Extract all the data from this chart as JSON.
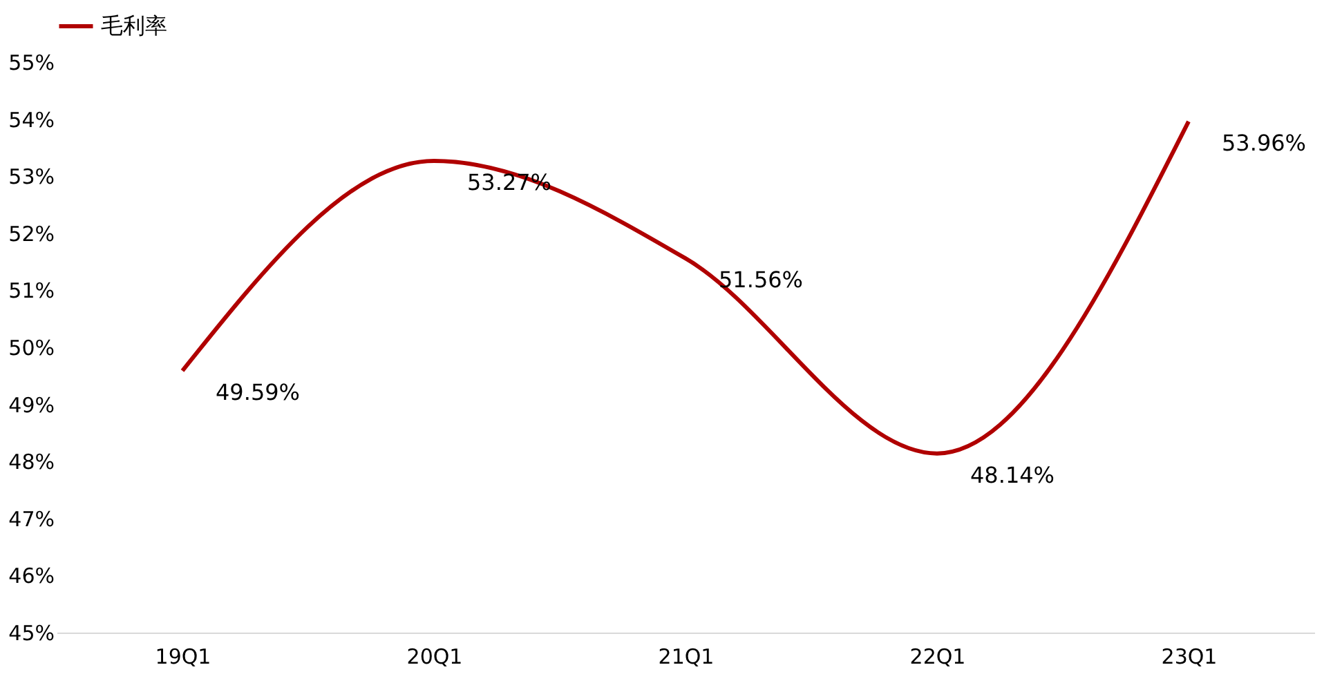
{
  "chart_data": {
    "type": "line",
    "categories": [
      "19Q1",
      "20Q1",
      "21Q1",
      "22Q1",
      "23Q1"
    ],
    "series": [
      {
        "name": "毛利率",
        "color": "#b00000",
        "values": [
          49.59,
          53.27,
          51.56,
          48.14,
          53.96
        ],
        "value_labels": [
          "49.59%",
          "53.27%",
          "51.56%",
          "48.14%",
          "53.96%"
        ]
      }
    ],
    "ylim": [
      45,
      55
    ],
    "yticks": [
      {
        "value": 45,
        "label": "45%"
      },
      {
        "value": 46,
        "label": "46%"
      },
      {
        "value": 47,
        "label": "47%"
      },
      {
        "value": 48,
        "label": "48%"
      },
      {
        "value": 49,
        "label": "49%"
      },
      {
        "value": 50,
        "label": "50%"
      },
      {
        "value": 51,
        "label": "51%"
      },
      {
        "value": 52,
        "label": "52%"
      },
      {
        "value": 53,
        "label": "53%"
      },
      {
        "value": 54,
        "label": "54%"
      },
      {
        "value": 55,
        "label": "55%"
      }
    ],
    "grid": false,
    "legend": "top",
    "marker": "none",
    "line_style": "solid"
  }
}
